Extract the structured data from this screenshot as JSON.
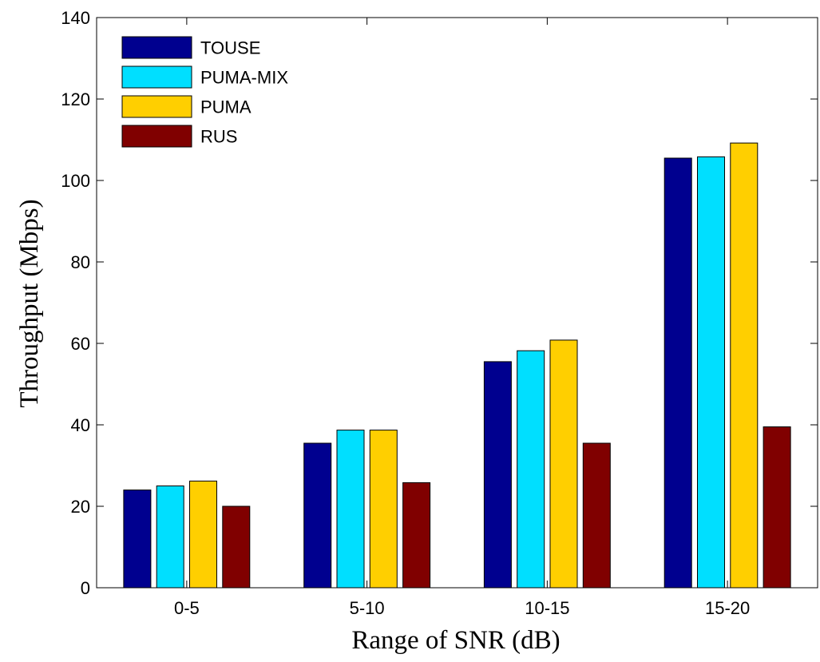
{
  "chart_data": {
    "type": "bar",
    "xlabel": "Range of SNR (dB)",
    "ylabel": "Throughput (Mbps)",
    "ylim": [
      0,
      140
    ],
    "yticks": [
      "0",
      "20",
      "40",
      "60",
      "80",
      "100",
      "120",
      "140"
    ],
    "grid": false,
    "legend_position": "top-left",
    "categories": [
      "0-5",
      "5-10",
      "10-15",
      "15-20"
    ],
    "series": [
      {
        "name": "TOUSE",
        "color": "#00008f",
        "values": [
          24,
          35.5,
          55.5,
          105.5
        ]
      },
      {
        "name": "PUMA-MIX",
        "color": "#00dfff",
        "values": [
          25,
          38.7,
          58.2,
          105.8
        ]
      },
      {
        "name": "PUMA",
        "color": "#ffcf00",
        "values": [
          26.2,
          38.7,
          60.8,
          109.2
        ]
      },
      {
        "name": "RUS",
        "color": "#800000",
        "values": [
          20,
          25.8,
          35.5,
          39.5
        ]
      }
    ]
  }
}
